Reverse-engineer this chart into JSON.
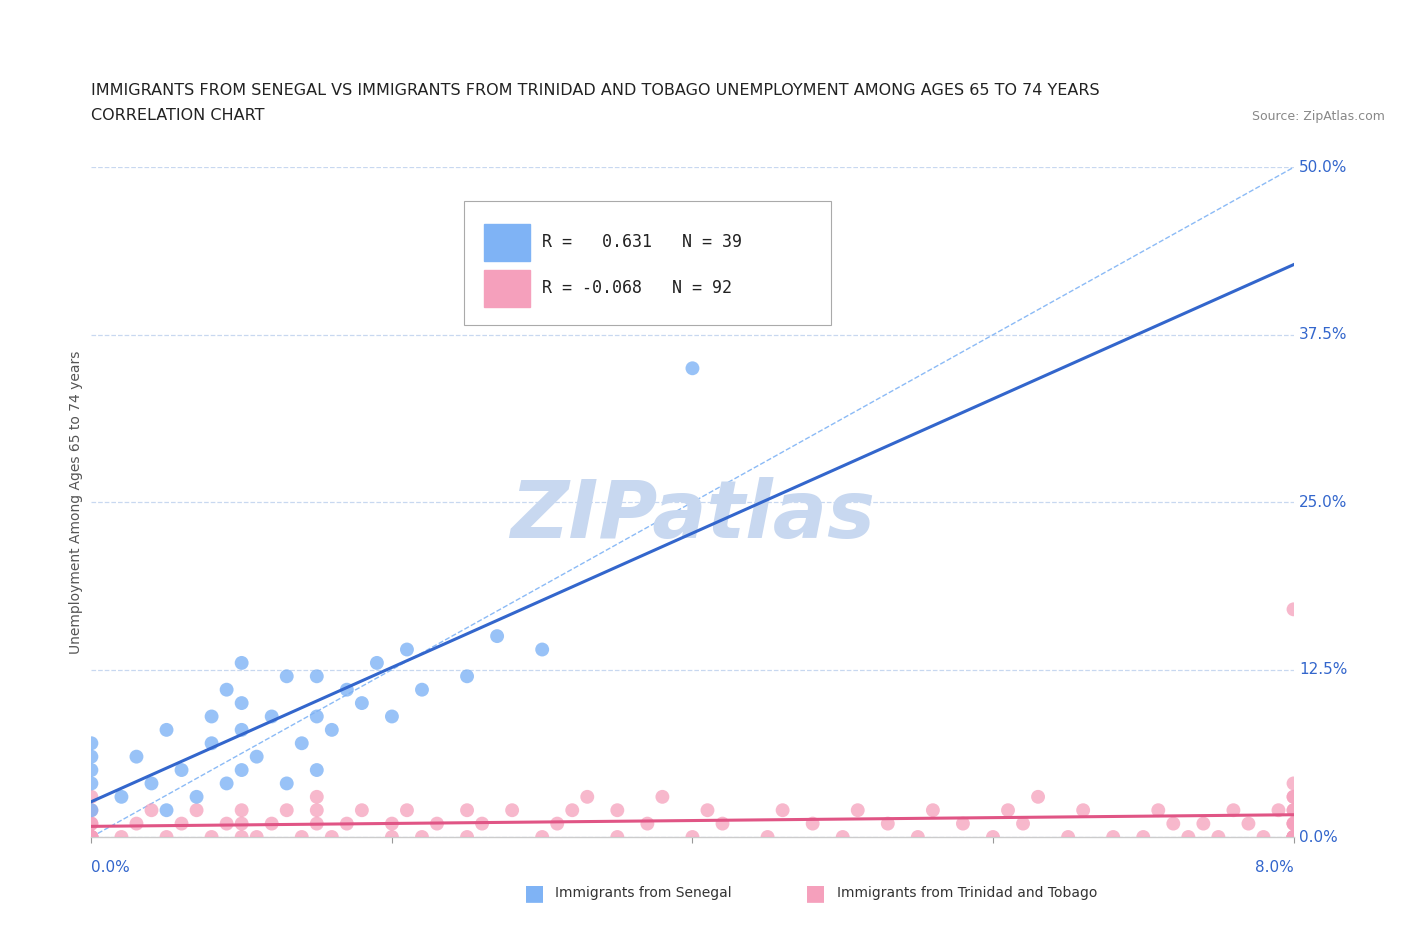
{
  "title_line1": "IMMIGRANTS FROM SENEGAL VS IMMIGRANTS FROM TRINIDAD AND TOBAGO UNEMPLOYMENT AMONG AGES 65 TO 74 YEARS",
  "title_line2": "CORRELATION CHART",
  "source_text": "Source: ZipAtlas.com",
  "ylabel": "Unemployment Among Ages 65 to 74 years",
  "legend_label1": "Immigrants from Senegal",
  "legend_label2": "Immigrants from Trinidad and Tobago",
  "r1": 0.631,
  "n1": 39,
  "r2": -0.068,
  "n2": 92,
  "xlim": [
    0.0,
    0.08
  ],
  "ylim": [
    0.0,
    0.5
  ],
  "yticks": [
    0.0,
    0.125,
    0.25,
    0.375,
    0.5
  ],
  "ytick_labels_right": [
    "0.0%",
    "12.5%",
    "25.0%",
    "37.5%",
    "50.0%"
  ],
  "color1": "#7fb3f5",
  "color2": "#f5a0bc",
  "trendline1_color": "#3366cc",
  "trendline2_color": "#e05585",
  "diag_color": "#7fb3f5",
  "background_color": "#ffffff",
  "grid_color": "#c8d8f0",
  "watermark_color": "#c8d8f0",
  "title_fontsize": 11.5,
  "axis_label_fontsize": 10,
  "tick_fontsize": 11,
  "senegal_x": [
    0.0,
    0.0,
    0.0,
    0.0,
    0.0,
    0.002,
    0.003,
    0.004,
    0.005,
    0.005,
    0.006,
    0.007,
    0.008,
    0.008,
    0.009,
    0.009,
    0.01,
    0.01,
    0.01,
    0.01,
    0.011,
    0.012,
    0.013,
    0.013,
    0.014,
    0.015,
    0.015,
    0.015,
    0.016,
    0.017,
    0.018,
    0.019,
    0.02,
    0.021,
    0.022,
    0.025,
    0.027,
    0.03,
    0.04
  ],
  "senegal_y": [
    0.02,
    0.04,
    0.05,
    0.06,
    0.07,
    0.03,
    0.06,
    0.04,
    0.02,
    0.08,
    0.05,
    0.03,
    0.07,
    0.09,
    0.04,
    0.11,
    0.05,
    0.08,
    0.1,
    0.13,
    0.06,
    0.09,
    0.04,
    0.12,
    0.07,
    0.05,
    0.09,
    0.12,
    0.08,
    0.11,
    0.1,
    0.13,
    0.09,
    0.14,
    0.11,
    0.12,
    0.15,
    0.14,
    0.35
  ],
  "tt_x": [
    0.0,
    0.0,
    0.0,
    0.0,
    0.0,
    0.0,
    0.0,
    0.0,
    0.0,
    0.0,
    0.002,
    0.003,
    0.004,
    0.005,
    0.006,
    0.007,
    0.008,
    0.009,
    0.01,
    0.01,
    0.01,
    0.011,
    0.012,
    0.013,
    0.014,
    0.015,
    0.015,
    0.015,
    0.016,
    0.017,
    0.018,
    0.02,
    0.02,
    0.021,
    0.022,
    0.023,
    0.025,
    0.025,
    0.026,
    0.028,
    0.03,
    0.031,
    0.032,
    0.033,
    0.035,
    0.035,
    0.037,
    0.038,
    0.04,
    0.041,
    0.042,
    0.045,
    0.046,
    0.048,
    0.05,
    0.051,
    0.053,
    0.055,
    0.056,
    0.058,
    0.06,
    0.061,
    0.062,
    0.063,
    0.065,
    0.066,
    0.068,
    0.07,
    0.071,
    0.072,
    0.073,
    0.074,
    0.075,
    0.076,
    0.077,
    0.078,
    0.079,
    0.08,
    0.08,
    0.08,
    0.08,
    0.08,
    0.08,
    0.08,
    0.08,
    0.08,
    0.08,
    0.08,
    0.08,
    0.08,
    0.08,
    0.08
  ],
  "tt_y": [
    0.0,
    0.0,
    0.0,
    0.0,
    0.0,
    0.0,
    0.01,
    0.01,
    0.02,
    0.03,
    0.0,
    0.01,
    0.02,
    0.0,
    0.01,
    0.02,
    0.0,
    0.01,
    0.0,
    0.01,
    0.02,
    0.0,
    0.01,
    0.02,
    0.0,
    0.01,
    0.02,
    0.03,
    0.0,
    0.01,
    0.02,
    0.0,
    0.01,
    0.02,
    0.0,
    0.01,
    0.0,
    0.02,
    0.01,
    0.02,
    0.0,
    0.01,
    0.02,
    0.03,
    0.0,
    0.02,
    0.01,
    0.03,
    0.0,
    0.02,
    0.01,
    0.0,
    0.02,
    0.01,
    0.0,
    0.02,
    0.01,
    0.0,
    0.02,
    0.01,
    0.0,
    0.02,
    0.01,
    0.03,
    0.0,
    0.02,
    0.0,
    0.0,
    0.02,
    0.01,
    0.0,
    0.01,
    0.0,
    0.02,
    0.01,
    0.0,
    0.02,
    0.0,
    0.01,
    0.03,
    0.0,
    0.0,
    0.0,
    0.01,
    0.02,
    0.04,
    0.0,
    0.01,
    0.02,
    0.03,
    0.17,
    0.0
  ]
}
